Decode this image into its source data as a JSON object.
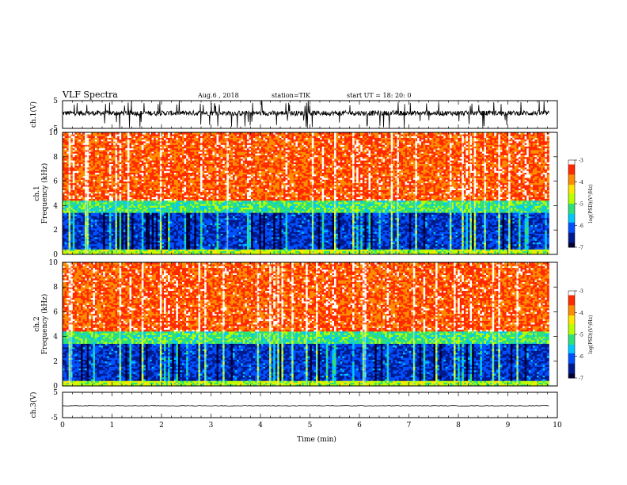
{
  "header": {
    "title": "VLF Spectra",
    "date": "Aug.6 , 2018",
    "station": "station=TIK",
    "start": "start UT = 18: 20: 0"
  },
  "colors": {
    "colormap": [
      "#000033",
      "#001a8c",
      "#0050ff",
      "#00c8ff",
      "#2ee07a",
      "#b8ff00",
      "#ffe600",
      "#ff8c00",
      "#ff2a00",
      "#ffffff"
    ],
    "trace": "#000000"
  },
  "colorbar": {
    "label": "log(PSD)(V²/Hz)",
    "ticks": [
      "-3",
      "-4",
      "-5",
      "-6",
      "-7"
    ]
  },
  "chart_data": [
    {
      "type": "line",
      "ylabel": "ch.1(V)",
      "ylim": [
        -5,
        5
      ],
      "yticks": [
        "5",
        "-5"
      ],
      "xlim": [
        0,
        10
      ],
      "description_values": {
        "baseline_v": 0.5,
        "spike_range_v": [
          -5,
          5
        ]
      }
    },
    {
      "type": "heatmap",
      "ylabel_lines": [
        "ch.1",
        "Frequency (kHz)"
      ],
      "ylim": [
        0,
        10
      ],
      "yticks": [
        "0",
        "2",
        "4",
        "6",
        "8",
        "10"
      ],
      "xlim": [
        0,
        10
      ],
      "zlim": [
        -7,
        -3
      ],
      "band_edges_khz": [
        0.5,
        3.5,
        4.5
      ],
      "band_levels_log_psd": {
        "below_0_5": -4.8,
        "from_0_5_to_3_5": -6.3,
        "from_3_5_to_4_5": -5.2,
        "above_4_5": -3.6
      },
      "data_end_min": 9.83
    },
    {
      "type": "heatmap",
      "ylabel_lines": [
        "ch.2",
        "Frequency (kHz)"
      ],
      "ylim": [
        0,
        10
      ],
      "yticks": [
        "0",
        "2",
        "4",
        "6",
        "8",
        "10"
      ],
      "xlim": [
        0,
        10
      ],
      "zlim": [
        -7,
        -3
      ],
      "band_edges_khz": [
        0.5,
        3.5,
        4.5
      ],
      "band_levels_log_psd": {
        "below_0_5": -4.8,
        "from_0_5_to_3_5": -6.3,
        "from_3_5_to_4_5": -5.2,
        "above_4_5": -3.6
      },
      "data_end_min": 9.83
    },
    {
      "type": "line",
      "ylabel": "ch.3(V)",
      "ylim": [
        -5,
        5
      ],
      "yticks": [
        "5",
        "-5"
      ],
      "xlim": [
        0,
        10
      ],
      "xlabel": "Time (min)",
      "xticks": [
        "0",
        "1",
        "2",
        "3",
        "4",
        "5",
        "6",
        "7",
        "8",
        "9",
        "10"
      ],
      "constant_value_v": -0.3,
      "data_end_min": 9.83
    }
  ]
}
